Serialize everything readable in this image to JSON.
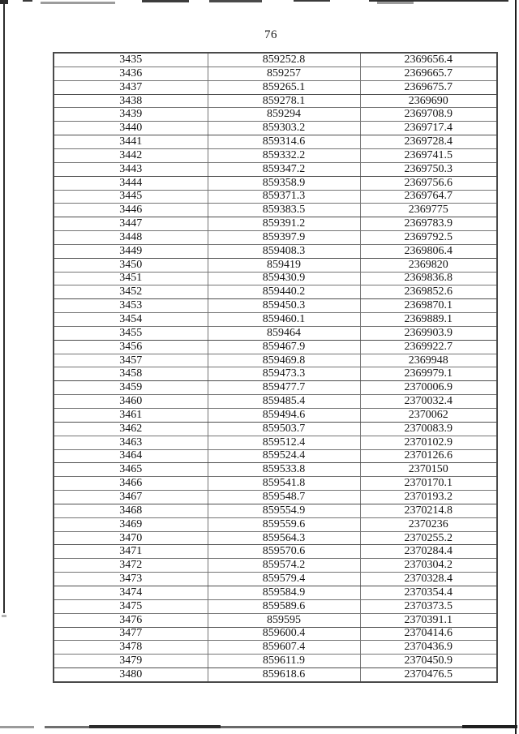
{
  "page": {
    "number": "76"
  },
  "table": {
    "rows": [
      [
        "3435",
        "859252.8",
        "2369656.4"
      ],
      [
        "3436",
        "859257",
        "2369665.7"
      ],
      [
        "3437",
        "859265.1",
        "2369675.7"
      ],
      [
        "3438",
        "859278.1",
        "2369690"
      ],
      [
        "3439",
        "859294",
        "2369708.9"
      ],
      [
        "3440",
        "859303.2",
        "2369717.4"
      ],
      [
        "3441",
        "859314.6",
        "2369728.4"
      ],
      [
        "3442",
        "859332.2",
        "2369741.5"
      ],
      [
        "3443",
        "859347.2",
        "2369750.3"
      ],
      [
        "3444",
        "859358.9",
        "2369756.6"
      ],
      [
        "3445",
        "859371.3",
        "2369764.7"
      ],
      [
        "3446",
        "859383.5",
        "2369775"
      ],
      [
        "3447",
        "859391.2",
        "2369783.9"
      ],
      [
        "3448",
        "859397.9",
        "2369792.5"
      ],
      [
        "3449",
        "859408.3",
        "2369806.4"
      ],
      [
        "3450",
        "859419",
        "2369820"
      ],
      [
        "3451",
        "859430.9",
        "2369836.8"
      ],
      [
        "3452",
        "859440.2",
        "2369852.6"
      ],
      [
        "3453",
        "859450.3",
        "2369870.1"
      ],
      [
        "3454",
        "859460.1",
        "2369889.1"
      ],
      [
        "3455",
        "859464",
        "2369903.9"
      ],
      [
        "3456",
        "859467.9",
        "2369922.7"
      ],
      [
        "3457",
        "859469.8",
        "2369948"
      ],
      [
        "3458",
        "859473.3",
        "2369979.1"
      ],
      [
        "3459",
        "859477.7",
        "2370006.9"
      ],
      [
        "3460",
        "859485.4",
        "2370032.4"
      ],
      [
        "3461",
        "859494.6",
        "2370062"
      ],
      [
        "3462",
        "859503.7",
        "2370083.9"
      ],
      [
        "3463",
        "859512.4",
        "2370102.9"
      ],
      [
        "3464",
        "859524.4",
        "2370126.6"
      ],
      [
        "3465",
        "859533.8",
        "2370150"
      ],
      [
        "3466",
        "859541.8",
        "2370170.1"
      ],
      [
        "3467",
        "859548.7",
        "2370193.2"
      ],
      [
        "3468",
        "859554.9",
        "2370214.8"
      ],
      [
        "3469",
        "859559.6",
        "2370236"
      ],
      [
        "3470",
        "859564.3",
        "2370255.2"
      ],
      [
        "3471",
        "859570.6",
        "2370284.4"
      ],
      [
        "3472",
        "859574.2",
        "2370304.2"
      ],
      [
        "3473",
        "859579.4",
        "2370328.4"
      ],
      [
        "3474",
        "859584.9",
        "2370354.4"
      ],
      [
        "3475",
        "859589.6",
        "2370373.5"
      ],
      [
        "3476",
        "859595",
        "2370391.1"
      ],
      [
        "3477",
        "859600.4",
        "2370414.6"
      ],
      [
        "3478",
        "859607.4",
        "2370436.9"
      ],
      [
        "3479",
        "859611.9",
        "2370450.9"
      ],
      [
        "3480",
        "859618.6",
        "2370476.5"
      ]
    ]
  }
}
